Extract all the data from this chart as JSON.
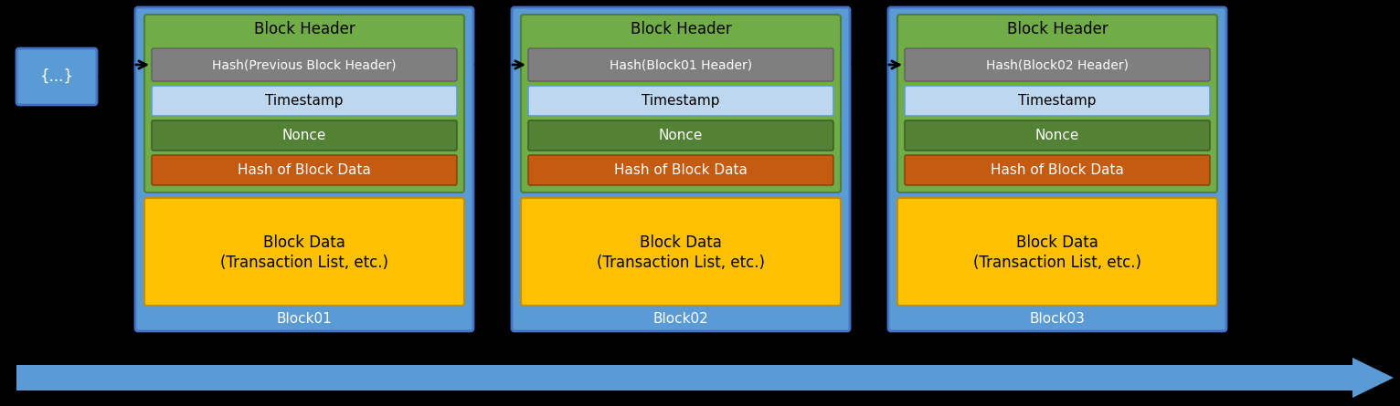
{
  "bg_color": "#000000",
  "block_bg_color": "#5b9bd5",
  "header_bg_color": "#70ad47",
  "hash_prev_color": "#7f7f7f",
  "timestamp_color": "#bdd7ee",
  "nonce_color": "#548235",
  "hash_data_color": "#c55a11",
  "block_data_color": "#ffc000",
  "arrow_color": "#5b9bd5",
  "text_color_white": "#ffffff",
  "text_color_black": "#000000",
  "blocks": [
    {
      "label": "Block01",
      "hash_label": "Hash(Previous Block Header)"
    },
    {
      "label": "Block02",
      "hash_label": "Hash(Block01 Header)"
    },
    {
      "label": "Block03",
      "hash_label": "Hash(Block02 Header)"
    }
  ],
  "prior_block_label": "{...}",
  "block_data_line1": "Block Data",
  "block_data_line2": "(Transaction List, etc.)",
  "block_header_text": "Block Header",
  "timestamp_text": "Timestamp",
  "nonce_text": "Nonce",
  "hash_of_block_data_text": "Hash of Block Data",
  "figsize": [
    15.32,
    4.45
  ],
  "dpi": 100
}
